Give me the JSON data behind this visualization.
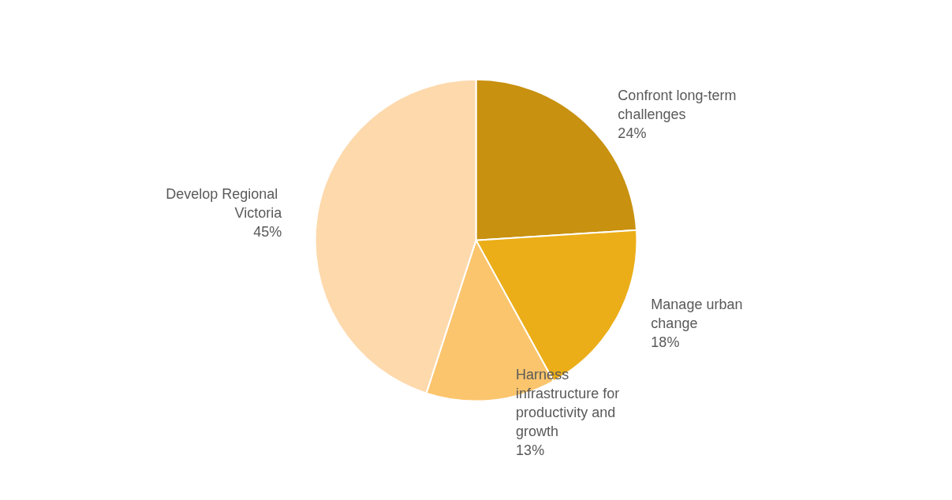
{
  "chart_data": {
    "type": "pie",
    "categories": [
      "Confront long-term challenges",
      "Manage urban change",
      "Harness infrastructure for productivity and growth",
      "Develop Regional Victoria"
    ],
    "values": [
      24,
      18,
      13,
      45
    ],
    "colors": [
      "#c8910f",
      "#ebae19",
      "#fbc56d",
      "#fdd9ac"
    ],
    "value_labels": [
      "24%",
      "18%",
      "13%",
      "45%"
    ],
    "legend": false
  }
}
